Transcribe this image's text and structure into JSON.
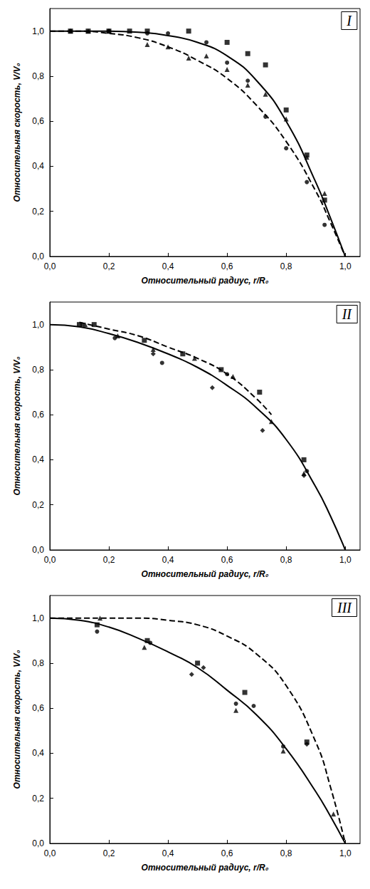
{
  "chart_data": [
    {
      "type": "scatter",
      "label": "I",
      "xlabel": "Относительный радиус, r/R₀",
      "ylabel": "Относительная скорость, V/V₀",
      "xlim": [
        0,
        1.05
      ],
      "ylim": [
        0,
        1.1
      ],
      "xticks": [
        {
          "value": 0,
          "label": "0,0"
        },
        {
          "value": 0.2,
          "label": "0,2"
        },
        {
          "value": 0.4,
          "label": "0,4"
        },
        {
          "value": 0.6,
          "label": "0,6"
        },
        {
          "value": 0.8,
          "label": "0,8"
        },
        {
          "value": 1,
          "label": "1,0"
        }
      ],
      "yticks": [
        {
          "value": 0,
          "label": "0,0"
        },
        {
          "value": 0.2,
          "label": "0,2"
        },
        {
          "value": 0.4,
          "label": "0,4"
        },
        {
          "value": 0.6,
          "label": "0,6"
        },
        {
          "value": 0.8,
          "label": "0,8"
        },
        {
          "value": 1,
          "label": "1,0"
        }
      ],
      "series": [
        {
          "type": "scatter",
          "marker": "square",
          "color": "#000000",
          "x": [
            0.07,
            0.13,
            0.2,
            0.27,
            0.33,
            0.47,
            0.6,
            0.67,
            0.73,
            0.8,
            0.87,
            0.93
          ],
          "values": [
            1.0,
            1.0,
            1.0,
            1.0,
            1.0,
            1.0,
            0.95,
            0.9,
            0.85,
            0.65,
            0.45,
            0.25
          ]
        },
        {
          "type": "scatter",
          "marker": "circle",
          "color": "#000000",
          "x": [
            0.07,
            0.2,
            0.33,
            0.4,
            0.53,
            0.6,
            0.67,
            0.73,
            0.8,
            0.87,
            0.93
          ],
          "values": [
            1.0,
            1.0,
            0.99,
            0.99,
            0.95,
            0.86,
            0.78,
            0.62,
            0.48,
            0.33,
            0.14
          ]
        },
        {
          "type": "scatter",
          "marker": "triangle",
          "color": "#000000",
          "x": [
            0.07,
            0.13,
            0.2,
            0.33,
            0.4,
            0.47,
            0.53,
            0.6,
            0.67,
            0.73,
            0.8,
            0.87,
            0.93
          ],
          "values": [
            1.0,
            1.0,
            1.0,
            0.94,
            0.93,
            0.88,
            0.89,
            0.83,
            0.76,
            0.72,
            0.61,
            0.44,
            0.28
          ]
        },
        {
          "type": "line",
          "line_style": "solid",
          "color": "#000000",
          "x": [
            0,
            0.1,
            0.2,
            0.3,
            0.4,
            0.5,
            0.6,
            0.7,
            0.8,
            0.9,
            0.95,
            1.0
          ],
          "values": [
            1.0,
            1.0,
            1.0,
            0.995,
            0.98,
            0.95,
            0.89,
            0.78,
            0.6,
            0.33,
            0.17,
            0
          ]
        },
        {
          "type": "line",
          "line_style": "dashed",
          "color": "#000000",
          "x": [
            0,
            0.1,
            0.2,
            0.3,
            0.4,
            0.5,
            0.6,
            0.7,
            0.8,
            0.9,
            0.95,
            1.0
          ],
          "values": [
            1.0,
            1.0,
            0.99,
            0.97,
            0.93,
            0.87,
            0.79,
            0.67,
            0.51,
            0.29,
            0.15,
            0
          ]
        }
      ]
    },
    {
      "type": "scatter",
      "label": "II",
      "xlabel": "Относительный радиус, r/R₀",
      "ylabel": "Относительная скорость, V/V₀",
      "xlim": [
        0,
        1.05
      ],
      "ylim": [
        0,
        1.1
      ],
      "xticks": [
        {
          "value": 0,
          "label": "0,0"
        },
        {
          "value": 0.2,
          "label": "0,2"
        },
        {
          "value": 0.4,
          "label": "0,4"
        },
        {
          "value": 0.6,
          "label": "0,6"
        },
        {
          "value": 0.8,
          "label": "0,8"
        },
        {
          "value": 1,
          "label": "1,0"
        }
      ],
      "yticks": [
        {
          "value": 0,
          "label": "0,0"
        },
        {
          "value": 0.2,
          "label": "0,2"
        },
        {
          "value": 0.4,
          "label": "0,4"
        },
        {
          "value": 0.6,
          "label": "0,6"
        },
        {
          "value": 0.8,
          "label": "0,8"
        },
        {
          "value": 1,
          "label": "1,0"
        }
      ],
      "series": [
        {
          "type": "scatter",
          "marker": "square",
          "color": "#000000",
          "x": [
            0.1,
            0.15,
            0.32,
            0.45,
            0.58,
            0.71,
            0.86
          ],
          "values": [
            1.0,
            1.0,
            0.93,
            0.87,
            0.8,
            0.7,
            0.4
          ]
        },
        {
          "type": "scatter",
          "marker": "circle",
          "color": "#000000",
          "x": [
            0.11,
            0.22,
            0.38,
            0.6,
            0.87
          ],
          "values": [
            1.0,
            0.94,
            0.83,
            0.78,
            0.35
          ]
        },
        {
          "type": "scatter",
          "marker": "diamond",
          "color": "#000000",
          "x": [
            0.35,
            0.55,
            0.72,
            0.86
          ],
          "values": [
            0.87,
            0.72,
            0.53,
            0.33
          ]
        },
        {
          "type": "scatter",
          "marker": "triangle",
          "color": "#000000",
          "x": [
            0.12,
            0.23,
            0.35,
            0.49,
            0.62,
            0.75,
            0.86
          ],
          "values": [
            1.0,
            0.95,
            0.89,
            0.85,
            0.77,
            0.57,
            0.34
          ]
        },
        {
          "type": "line",
          "line_style": "solid",
          "color": "#000000",
          "x": [
            0,
            0.1,
            0.2,
            0.3,
            0.4,
            0.5,
            0.6,
            0.7,
            0.8,
            0.9,
            0.95,
            1.0
          ],
          "values": [
            1.0,
            0.99,
            0.96,
            0.92,
            0.87,
            0.81,
            0.73,
            0.63,
            0.49,
            0.28,
            0.15,
            0
          ]
        },
        {
          "type": "line",
          "line_style": "dashed",
          "color": "#000000",
          "x": [
            0.1,
            0.2,
            0.3,
            0.4,
            0.5,
            0.6,
            0.7,
            0.75
          ],
          "values": [
            1.01,
            0.98,
            0.95,
            0.9,
            0.85,
            0.78,
            0.67,
            0.6
          ]
        }
      ]
    },
    {
      "type": "scatter",
      "label": "III",
      "xlabel": "Относительный радиус, r/R₀",
      "ylabel": "Относительная скорость, V/V₀",
      "xlim": [
        0,
        1.05
      ],
      "ylim": [
        0,
        1.1
      ],
      "xticks": [
        {
          "value": 0,
          "label": "0,0"
        },
        {
          "value": 0.2,
          "label": "0,2"
        },
        {
          "value": 0.4,
          "label": "0,4"
        },
        {
          "value": 0.6,
          "label": "0,6"
        },
        {
          "value": 0.8,
          "label": "0,8"
        },
        {
          "value": 1,
          "label": "1,0"
        }
      ],
      "yticks": [
        {
          "value": 0,
          "label": "0,0"
        },
        {
          "value": 0.2,
          "label": "0,2"
        },
        {
          "value": 0.4,
          "label": "0,4"
        },
        {
          "value": 0.6,
          "label": "0,6"
        },
        {
          "value": 0.8,
          "label": "0,8"
        },
        {
          "value": 1,
          "label": "1,0"
        }
      ],
      "series": [
        {
          "type": "scatter",
          "marker": "square",
          "color": "#000000",
          "x": [
            0.16,
            0.33,
            0.5,
            0.66,
            0.87
          ],
          "values": [
            0.97,
            0.9,
            0.8,
            0.67,
            0.45
          ]
        },
        {
          "type": "scatter",
          "marker": "circle",
          "color": "#000000",
          "x": [
            0.16,
            0.34,
            0.63,
            0.69,
            0.79
          ],
          "values": [
            0.94,
            0.89,
            0.62,
            0.61,
            0.43
          ]
        },
        {
          "type": "scatter",
          "marker": "diamond",
          "color": "#000000",
          "x": [
            0.48,
            0.52,
            0.87
          ],
          "values": [
            0.75,
            0.78,
            0.44
          ]
        },
        {
          "type": "scatter",
          "marker": "triangle",
          "color": "#000000",
          "x": [
            0.17,
            0.32,
            0.63,
            0.79,
            0.96
          ],
          "values": [
            1.0,
            0.87,
            0.59,
            0.41,
            0.13
          ]
        },
        {
          "type": "line",
          "line_style": "solid",
          "color": "#000000",
          "x": [
            0,
            0.1,
            0.2,
            0.3,
            0.4,
            0.5,
            0.6,
            0.7,
            0.8,
            0.9,
            0.95,
            1.0
          ],
          "values": [
            1.0,
            0.99,
            0.96,
            0.91,
            0.85,
            0.78,
            0.68,
            0.57,
            0.42,
            0.23,
            0.12,
            0
          ]
        },
        {
          "type": "line",
          "line_style": "dashed",
          "color": "#000000",
          "x": [
            0,
            0.1,
            0.2,
            0.3,
            0.4,
            0.5,
            0.6,
            0.7,
            0.8,
            0.9,
            0.95,
            1.0
          ],
          "values": [
            1.0,
            1.0,
            1.0,
            1.0,
            0.99,
            0.97,
            0.92,
            0.84,
            0.7,
            0.45,
            0.25,
            0
          ]
        }
      ]
    }
  ]
}
